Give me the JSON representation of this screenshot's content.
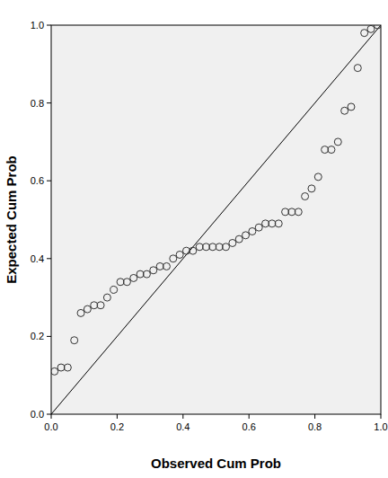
{
  "chart_data": {
    "type": "scatter",
    "x_label": "Observed Cum Prob",
    "y_label": "Expected Cum Prob",
    "marker": "circle",
    "color": "#333333",
    "x": [
      0.01,
      0.03,
      0.05,
      0.07,
      0.09,
      0.11,
      0.13,
      0.15,
      0.17,
      0.19,
      0.21,
      0.23,
      0.25,
      0.27,
      0.29,
      0.31,
      0.33,
      0.35,
      0.37,
      0.39,
      0.41,
      0.43,
      0.45,
      0.47,
      0.49,
      0.51,
      0.53,
      0.55,
      0.57,
      0.59,
      0.61,
      0.63,
      0.65,
      0.67,
      0.69,
      0.71,
      0.73,
      0.75,
      0.77,
      0.79,
      0.81,
      0.83,
      0.85,
      0.87,
      0.89,
      0.91,
      0.93,
      0.95,
      0.97,
      0.99
    ],
    "values": [
      0.11,
      0.12,
      0.12,
      0.19,
      0.26,
      0.27,
      0.28,
      0.28,
      0.3,
      0.32,
      0.34,
      0.34,
      0.35,
      0.36,
      0.36,
      0.37,
      0.38,
      0.38,
      0.4,
      0.41,
      0.42,
      0.42,
      0.43,
      0.43,
      0.43,
      0.43,
      0.43,
      0.44,
      0.45,
      0.46,
      0.47,
      0.48,
      0.49,
      0.49,
      0.49,
      0.52,
      0.52,
      0.52,
      0.56,
      0.58,
      0.61,
      0.68,
      0.68,
      0.7,
      0.78,
      0.79,
      0.89,
      0.98,
      0.99,
      1.0
    ],
    "xlim": [
      0,
      1
    ],
    "ylim": [
      0,
      1
    ],
    "xticks": [
      {
        "value": 0,
        "label": "0.0"
      },
      {
        "value": 0.2,
        "label": "0.2"
      },
      {
        "value": 0.4,
        "label": "0.4"
      },
      {
        "value": 0.6,
        "label": "0.6"
      },
      {
        "value": 0.8,
        "label": "0.8"
      },
      {
        "value": 1,
        "label": "1.0"
      }
    ],
    "yticks": [
      {
        "value": 0,
        "label": "0.0"
      },
      {
        "value": 0.2,
        "label": "0.2"
      },
      {
        "value": 0.4,
        "label": "0.4"
      },
      {
        "value": 0.6,
        "label": "0.6"
      },
      {
        "value": 0.8,
        "label": "0.8"
      },
      {
        "value": 1,
        "label": "1.0"
      }
    ],
    "grid": false
  }
}
